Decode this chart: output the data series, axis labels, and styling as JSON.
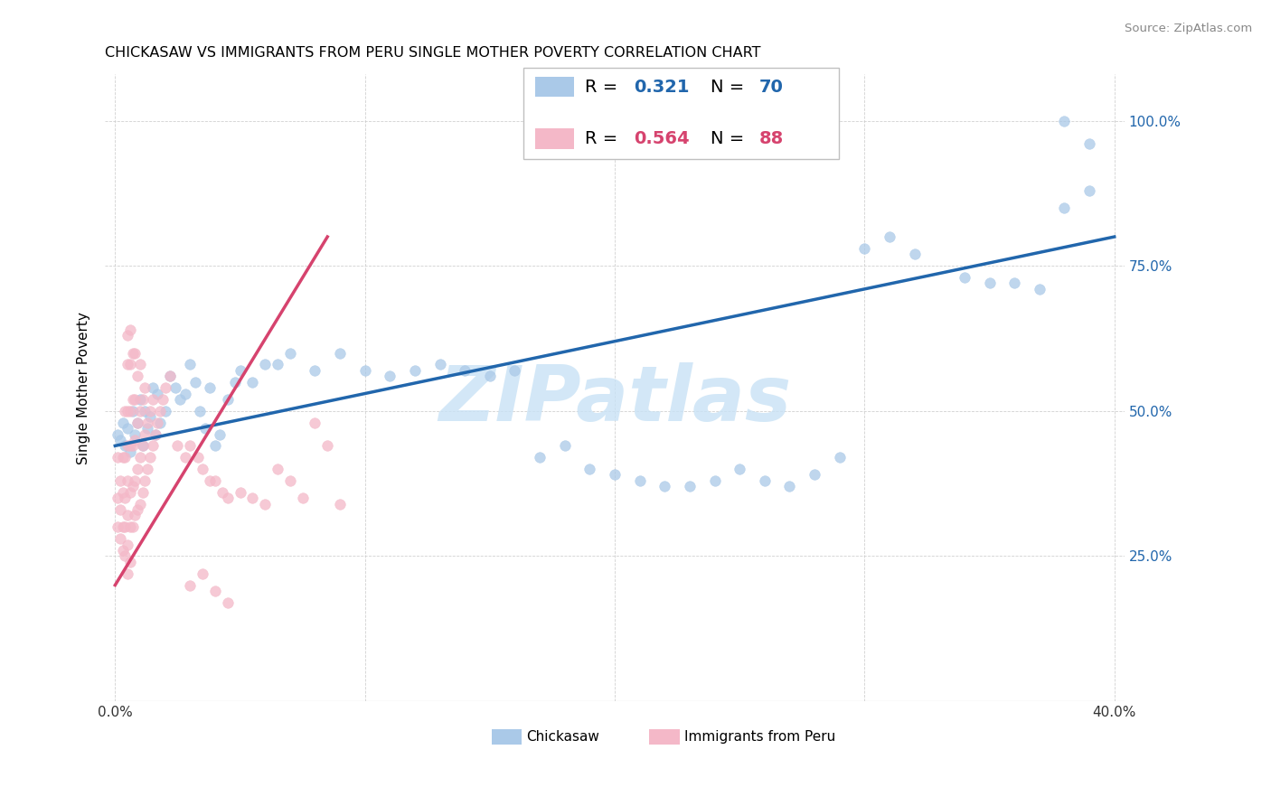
{
  "title": "CHICKASAW VS IMMIGRANTS FROM PERU SINGLE MOTHER POVERTY CORRELATION CHART",
  "source": "Source: ZipAtlas.com",
  "ylabel": "Single Mother Poverty",
  "color_blue": "#aac9e8",
  "color_pink": "#f4b8c8",
  "line_blue": "#2166ac",
  "line_pink": "#d6436e",
  "r_blue": 0.321,
  "n_blue": 70,
  "r_pink": 0.564,
  "n_pink": 88,
  "xlim": [
    0.0,
    0.4
  ],
  "ylim": [
    0.0,
    1.05
  ],
  "x_ticks": [
    0.0,
    0.1,
    0.2,
    0.3,
    0.4
  ],
  "y_ticks": [
    0.25,
    0.5,
    0.75,
    1.0
  ],
  "blue_line_x0": 0.0,
  "blue_line_y0": 0.44,
  "blue_line_x1": 0.4,
  "blue_line_y1": 0.8,
  "pink_line_x0": 0.0,
  "pink_line_y0": 0.2,
  "pink_line_x1": 0.085,
  "pink_line_y1": 0.8,
  "chickasaw_x": [
    0.001,
    0.002,
    0.003,
    0.004,
    0.005,
    0.006,
    0.007,
    0.008,
    0.009,
    0.01,
    0.011,
    0.012,
    0.013,
    0.014,
    0.015,
    0.016,
    0.017,
    0.018,
    0.02,
    0.022,
    0.024,
    0.026,
    0.028,
    0.03,
    0.032,
    0.034,
    0.036,
    0.038,
    0.04,
    0.042,
    0.045,
    0.048,
    0.05,
    0.055,
    0.06,
    0.065,
    0.07,
    0.08,
    0.09,
    0.1,
    0.11,
    0.12,
    0.13,
    0.14,
    0.15,
    0.16,
    0.17,
    0.18,
    0.19,
    0.2,
    0.21,
    0.22,
    0.23,
    0.24,
    0.25,
    0.26,
    0.27,
    0.28,
    0.29,
    0.3,
    0.31,
    0.32,
    0.34,
    0.35,
    0.36,
    0.37,
    0.38,
    0.39,
    0.38,
    0.39
  ],
  "chickasaw_y": [
    0.46,
    0.45,
    0.48,
    0.44,
    0.47,
    0.43,
    0.5,
    0.46,
    0.48,
    0.52,
    0.44,
    0.5,
    0.47,
    0.49,
    0.54,
    0.46,
    0.53,
    0.48,
    0.5,
    0.56,
    0.54,
    0.52,
    0.53,
    0.58,
    0.55,
    0.5,
    0.47,
    0.54,
    0.44,
    0.46,
    0.52,
    0.55,
    0.57,
    0.55,
    0.58,
    0.58,
    0.6,
    0.57,
    0.6,
    0.57,
    0.56,
    0.57,
    0.58,
    0.57,
    0.56,
    0.57,
    0.42,
    0.44,
    0.4,
    0.39,
    0.38,
    0.37,
    0.37,
    0.38,
    0.4,
    0.38,
    0.37,
    0.39,
    0.42,
    0.78,
    0.8,
    0.77,
    0.73,
    0.72,
    0.72,
    0.71,
    0.85,
    0.88,
    1.0,
    0.96
  ],
  "peru_x": [
    0.001,
    0.001,
    0.001,
    0.002,
    0.002,
    0.002,
    0.003,
    0.003,
    0.003,
    0.003,
    0.004,
    0.004,
    0.004,
    0.004,
    0.004,
    0.005,
    0.005,
    0.005,
    0.005,
    0.005,
    0.005,
    0.005,
    0.005,
    0.006,
    0.006,
    0.006,
    0.006,
    0.006,
    0.006,
    0.006,
    0.007,
    0.007,
    0.007,
    0.007,
    0.007,
    0.008,
    0.008,
    0.008,
    0.008,
    0.008,
    0.009,
    0.009,
    0.009,
    0.009,
    0.01,
    0.01,
    0.01,
    0.01,
    0.011,
    0.011,
    0.011,
    0.012,
    0.012,
    0.012,
    0.013,
    0.013,
    0.014,
    0.014,
    0.015,
    0.015,
    0.016,
    0.017,
    0.018,
    0.019,
    0.02,
    0.022,
    0.025,
    0.028,
    0.03,
    0.033,
    0.035,
    0.038,
    0.04,
    0.043,
    0.045,
    0.05,
    0.055,
    0.06,
    0.065,
    0.07,
    0.075,
    0.08,
    0.085,
    0.09,
    0.03,
    0.035,
    0.04,
    0.045
  ],
  "peru_y": [
    0.3,
    0.35,
    0.42,
    0.28,
    0.33,
    0.38,
    0.26,
    0.3,
    0.36,
    0.42,
    0.25,
    0.3,
    0.35,
    0.42,
    0.5,
    0.22,
    0.27,
    0.32,
    0.38,
    0.44,
    0.5,
    0.58,
    0.63,
    0.24,
    0.3,
    0.36,
    0.44,
    0.5,
    0.58,
    0.64,
    0.3,
    0.37,
    0.44,
    0.52,
    0.6,
    0.32,
    0.38,
    0.45,
    0.52,
    0.6,
    0.33,
    0.4,
    0.48,
    0.56,
    0.34,
    0.42,
    0.5,
    0.58,
    0.36,
    0.44,
    0.52,
    0.38,
    0.46,
    0.54,
    0.4,
    0.48,
    0.42,
    0.5,
    0.44,
    0.52,
    0.46,
    0.48,
    0.5,
    0.52,
    0.54,
    0.56,
    0.44,
    0.42,
    0.44,
    0.42,
    0.4,
    0.38,
    0.38,
    0.36,
    0.35,
    0.36,
    0.35,
    0.34,
    0.4,
    0.38,
    0.35,
    0.48,
    0.44,
    0.34,
    0.2,
    0.22,
    0.19,
    0.17
  ]
}
